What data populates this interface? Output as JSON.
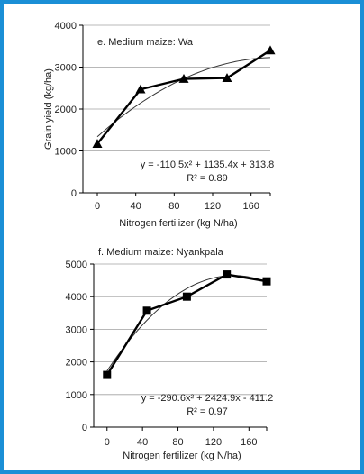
{
  "frame_color": "#1a8fd6",
  "chart_data": [
    {
      "type": "line",
      "title": "e. Medium maize: Wa",
      "xlabel": "Nitrogen fertilizer (kg N/ha)",
      "ylabel": "Grain yield (kg/ha)",
      "ylim": [
        0,
        4000
      ],
      "xlim": [
        -15,
        180
      ],
      "xticks": [
        0,
        40,
        80,
        120,
        160
      ],
      "yticks": [
        0,
        1000,
        2000,
        3000,
        4000
      ],
      "grid": true,
      "marker": "triangle",
      "series": [
        {
          "x": [
            0,
            45,
            90,
            135,
            180
          ],
          "y": [
            1170,
            2470,
            2720,
            2740,
            3400
          ]
        }
      ],
      "trendline": {
        "a": -110.5,
        "b": 1135.4,
        "c": 313.8
      },
      "equation": "y = -110.5x² + 1135.4x + 313.8",
      "r2": "R² = 0.89"
    },
    {
      "type": "line",
      "title": "f. Medium maize: Nyankpala",
      "xlabel": "Nitrogen fertilizer (kg N/ha)",
      "ylabel": "",
      "ylim": [
        0,
        5000
      ],
      "xlim": [
        -15,
        180
      ],
      "xticks": [
        0,
        40,
        80,
        120,
        160
      ],
      "yticks": [
        0,
        1000,
        2000,
        3000,
        4000,
        5000
      ],
      "grid": true,
      "marker": "square",
      "series": [
        {
          "x": [
            0,
            45,
            90,
            135,
            180
          ],
          "y": [
            1600,
            3570,
            4000,
            4680,
            4470
          ]
        }
      ],
      "trendline": {
        "a": -290.6,
        "b": 2424.9,
        "c": -411.2
      },
      "equation": "y = -290.6x² + 2424.9x - 411.2",
      "r2": "R² = 0.97"
    }
  ]
}
